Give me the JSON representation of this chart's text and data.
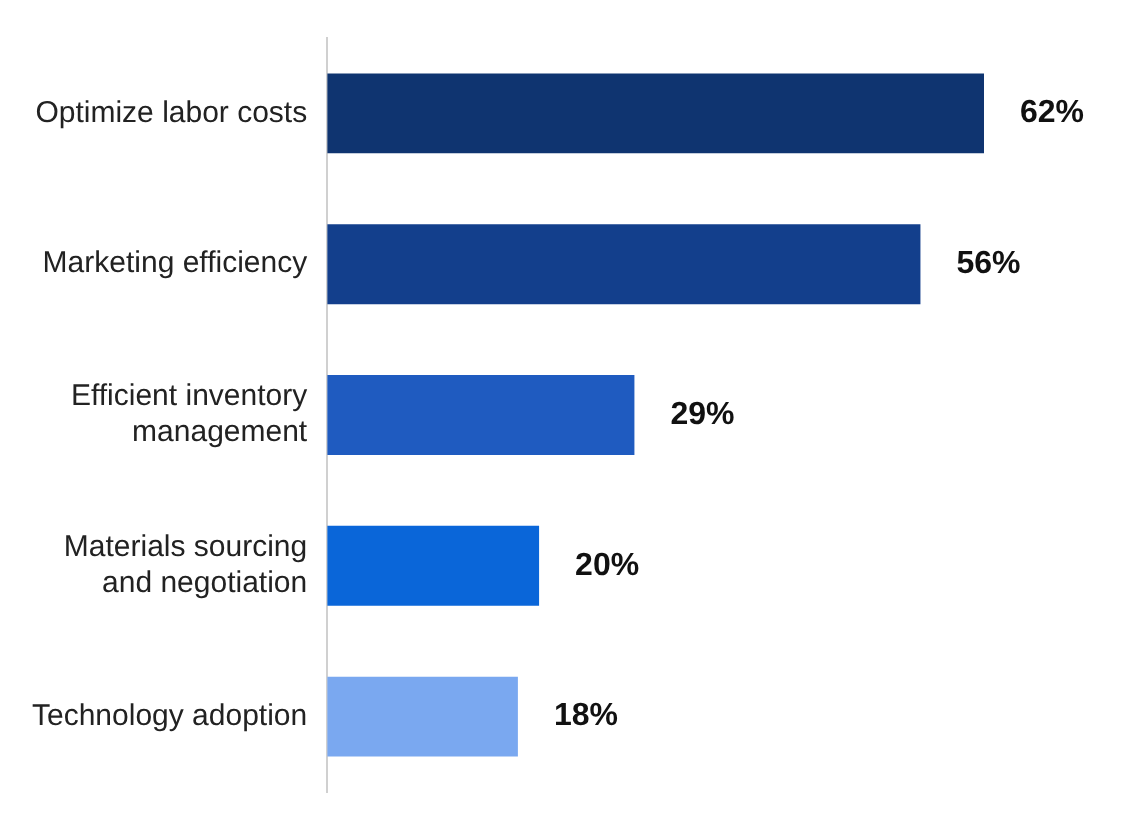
{
  "chart_data": {
    "type": "bar",
    "orientation": "horizontal",
    "categories": [
      "Optimize labor costs",
      "Marketing efficiency",
      "Efficient inventory management",
      "Materials sourcing and negotiation",
      "Technology adoption"
    ],
    "values": [
      62,
      56,
      29,
      20,
      18
    ],
    "value_labels": [
      "62%",
      "56%",
      "29%",
      "20%",
      "18%"
    ],
    "colors": [
      "#0f3470",
      "#133f8c",
      "#1f5bc0",
      "#0a66d9",
      "#7aa8f0"
    ],
    "legend": false
  }
}
